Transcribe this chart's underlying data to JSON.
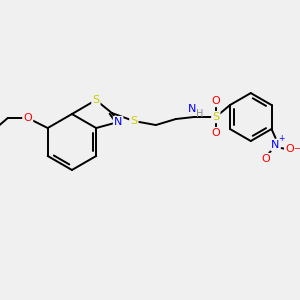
{
  "bg_color": "#f0f0f0",
  "bond_color": "#000000",
  "bond_lw": 1.4,
  "atom_colors": {
    "S": "#cccc00",
    "N": "#0000ff",
    "O": "#ff0000",
    "H": "#888888",
    "C": "#000000"
  },
  "figsize": [
    3.0,
    3.0
  ],
  "dpi": 100
}
